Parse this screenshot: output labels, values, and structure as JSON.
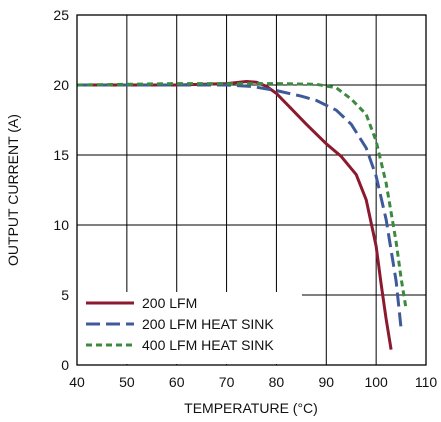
{
  "chart_data": {
    "type": "line",
    "title": "",
    "xlabel": "TEMPERATURE (°C)",
    "ylabel": "OUTPUT CURRENT (A)",
    "xlim": [
      40,
      110
    ],
    "ylim": [
      0,
      25
    ],
    "xticks": [
      "40",
      "50",
      "60",
      "70",
      "80",
      "90",
      "100",
      "110"
    ],
    "yticks": [
      "0",
      "5",
      "10",
      "15",
      "20",
      "25"
    ],
    "grid": true,
    "legend_position": "bottom-left",
    "series": [
      {
        "name": "200 LFM",
        "color": "#8b1a2e",
        "dash": "solid",
        "points": [
          [
            40,
            20.0
          ],
          [
            60,
            20.0
          ],
          [
            70,
            20.1
          ],
          [
            74,
            20.25
          ],
          [
            76,
            20.2
          ],
          [
            78,
            19.9
          ],
          [
            80,
            19.4
          ],
          [
            83,
            18.3
          ],
          [
            86,
            17.2
          ],
          [
            90,
            15.8
          ],
          [
            93,
            14.9
          ],
          [
            96,
            13.6
          ],
          [
            98,
            11.8
          ],
          [
            100,
            8.5
          ],
          [
            101,
            5.8
          ],
          [
            102,
            3.3
          ],
          [
            103,
            1.1
          ]
        ]
      },
      {
        "name": "200 LFM HEAT SINK",
        "color": "#3f5a99",
        "dash": "long-dash",
        "points": [
          [
            40,
            20.0
          ],
          [
            60,
            20.0
          ],
          [
            70,
            20.0
          ],
          [
            75,
            19.9
          ],
          [
            80,
            19.6
          ],
          [
            85,
            19.2
          ],
          [
            88,
            18.9
          ],
          [
            92,
            18.2
          ],
          [
            95,
            17.2
          ],
          [
            98,
            15.5
          ],
          [
            100,
            13.5
          ],
          [
            102,
            10.4
          ],
          [
            104,
            6.0
          ],
          [
            105,
            2.6
          ]
        ]
      },
      {
        "name": "400 LFM HEAT SINK",
        "color": "#3b8a3e",
        "dash": "short-dash",
        "points": [
          [
            40,
            20.0
          ],
          [
            60,
            20.1
          ],
          [
            70,
            20.1
          ],
          [
            80,
            20.1
          ],
          [
            88,
            20.05
          ],
          [
            92,
            19.8
          ],
          [
            95,
            19.0
          ],
          [
            98,
            17.9
          ],
          [
            100,
            16.0
          ],
          [
            102,
            13.0
          ],
          [
            104,
            8.8
          ],
          [
            105,
            6.2
          ],
          [
            106,
            4.0
          ]
        ]
      }
    ]
  }
}
